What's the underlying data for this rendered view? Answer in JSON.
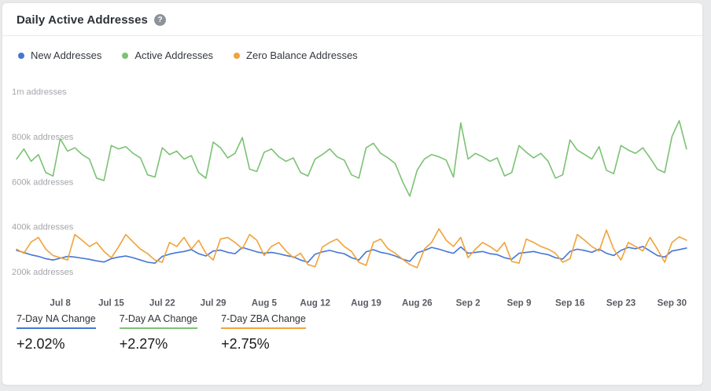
{
  "header": {
    "title": "Daily Active Addresses",
    "help_glyph": "?"
  },
  "legend": [
    {
      "label": "New Addresses",
      "color": "#4477d4"
    },
    {
      "label": "Active Addresses",
      "color": "#7cc274"
    },
    {
      "label": "Zero Balance Addresses",
      "color": "#f0a33b"
    }
  ],
  "stats": [
    {
      "label": "7-Day NA Change",
      "value": "+2.02%",
      "color": "#4477d4"
    },
    {
      "label": "7-Day AA Change",
      "value": "+2.27%",
      "color": "#7cc274"
    },
    {
      "label": "7-Day ZBA Change",
      "value": "+2.75%",
      "color": "#f0a33b"
    }
  ],
  "chart_data": {
    "type": "line",
    "title": "Daily Active Addresses",
    "xlabel": "",
    "ylabel": "addresses",
    "values_unit": "thousands_of_addresses",
    "ylim": [
      150,
      1050
    ],
    "grid": false,
    "legend_position": "top",
    "y_ticks": [
      {
        "label": "200k addresses",
        "value": 200
      },
      {
        "label": "400k addresses",
        "value": 400
      },
      {
        "label": "600k addresses",
        "value": 600
      },
      {
        "label": "800k addresses",
        "value": 800
      },
      {
        "label": "1m addresses",
        "value": 1000
      }
    ],
    "x_ticks": [
      {
        "label": "Jul 8",
        "index": 6
      },
      {
        "label": "Jul 15",
        "index": 13
      },
      {
        "label": "Jul 22",
        "index": 20
      },
      {
        "label": "Jul 29",
        "index": 27
      },
      {
        "label": "Aug 5",
        "index": 34
      },
      {
        "label": "Aug 12",
        "index": 41
      },
      {
        "label": "Aug 19",
        "index": 48
      },
      {
        "label": "Aug 26",
        "index": 55
      },
      {
        "label": "Sep 2",
        "index": 62
      },
      {
        "label": "Sep 9",
        "index": 69
      },
      {
        "label": "Sep 16",
        "index": 76
      },
      {
        "label": "Sep 23",
        "index": 83
      },
      {
        "label": "Sep 30",
        "index": 90
      }
    ],
    "series": [
      {
        "name": "New Addresses",
        "color": "#4477d4",
        "values": [
          295,
          285,
          275,
          268,
          258,
          252,
          260,
          268,
          265,
          260,
          255,
          248,
          243,
          258,
          265,
          270,
          262,
          252,
          242,
          238,
          268,
          278,
          285,
          290,
          298,
          280,
          270,
          292,
          296,
          286,
          280,
          308,
          298,
          288,
          282,
          286,
          280,
          272,
          266,
          252,
          242,
          278,
          288,
          295,
          286,
          280,
          262,
          252,
          288,
          298,
          286,
          280,
          270,
          256,
          246,
          284,
          294,
          308,
          300,
          290,
          282,
          310,
          282,
          286,
          290,
          280,
          276,
          262,
          255,
          282,
          286,
          290,
          282,
          276,
          262,
          256,
          290,
          300,
          294,
          286,
          300,
          282,
          272,
          295,
          308,
          302,
          312,
          292,
          272,
          265,
          292,
          298,
          305
        ]
      },
      {
        "name": "Active Addresses",
        "color": "#7cc274",
        "values": [
          700,
          745,
          690,
          720,
          640,
          625,
          790,
          735,
          750,
          720,
          700,
          615,
          605,
          760,
          745,
          755,
          725,
          705,
          630,
          620,
          750,
          720,
          735,
          700,
          715,
          640,
          615,
          775,
          750,
          705,
          725,
          795,
          655,
          645,
          730,
          745,
          710,
          690,
          705,
          640,
          625,
          700,
          720,
          745,
          710,
          695,
          630,
          615,
          750,
          770,
          725,
          705,
          680,
          600,
          535,
          650,
          700,
          720,
          710,
          695,
          620,
          860,
          700,
          725,
          710,
          690,
          705,
          625,
          640,
          760,
          730,
          705,
          725,
          690,
          615,
          630,
          785,
          740,
          720,
          700,
          755,
          650,
          635,
          760,
          740,
          725,
          750,
          705,
          655,
          640,
          800,
          870,
          745
        ]
      },
      {
        "name": "Zero Balance Addresses",
        "color": "#f0a33b",
        "values": [
          300,
          282,
          332,
          352,
          300,
          272,
          262,
          252,
          365,
          340,
          312,
          330,
          290,
          262,
          310,
          365,
          332,
          300,
          280,
          252,
          242,
          330,
          312,
          352,
          300,
          340,
          282,
          252,
          345,
          352,
          330,
          302,
          365,
          340,
          272,
          312,
          330,
          292,
          262,
          282,
          232,
          222,
          310,
          330,
          345,
          312,
          290,
          242,
          228,
          330,
          345,
          302,
          282,
          256,
          232,
          218,
          300,
          330,
          390,
          340,
          312,
          352,
          262,
          300,
          330,
          312,
          290,
          330,
          246,
          238,
          345,
          330,
          312,
          300,
          282,
          242,
          258,
          365,
          340,
          312,
          292,
          385,
          300,
          252,
          330,
          312,
          292,
          352,
          300,
          242,
          330,
          355,
          340
        ]
      }
    ]
  }
}
